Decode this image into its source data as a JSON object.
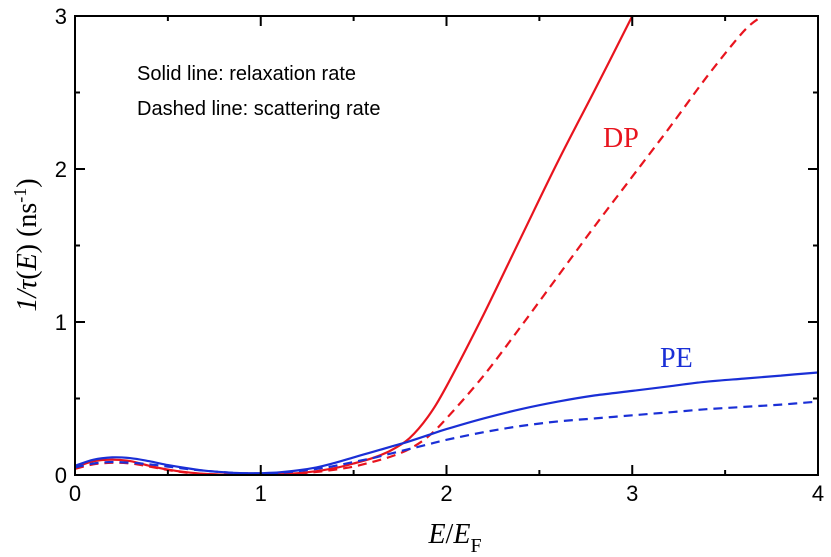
{
  "chart_data": {
    "type": "line",
    "xlabel": "E/E_F",
    "xlabel_parts": {
      "main": "E",
      "sep": "/",
      "sub_base": "E",
      "sub": "F"
    },
    "ylabel": "1/τ(E) (ns⁻¹)",
    "ylabel_parts": {
      "pre": "1/",
      "tau": "τ",
      "open": "(",
      "var": "E",
      "close": ")",
      "units": " (ns",
      "sup": "-1",
      "end": ")"
    },
    "xlim": [
      0,
      4
    ],
    "ylim": [
      0,
      3
    ],
    "x_ticks": [
      0,
      1,
      2,
      3,
      4
    ],
    "y_ticks": [
      0,
      1,
      2,
      3
    ],
    "x_tick_labels": [
      "0",
      "1",
      "2",
      "3",
      "4"
    ],
    "y_tick_labels": [
      "0",
      "1",
      "2",
      "3"
    ],
    "annotations": [
      "Solid line: relaxation rate",
      "Dashed line: scattering rate"
    ],
    "series_labels": [
      {
        "text": "DP",
        "color": "#e8141e"
      },
      {
        "text": "PE",
        "color": "#1a2fd6"
      }
    ],
    "series": [
      {
        "name": "DP relaxation rate",
        "mechanism": "DP",
        "style": "solid",
        "color": "#e8141e",
        "x": [
          0,
          0.1,
          0.2,
          0.3,
          0.4,
          0.5,
          0.6,
          0.7,
          0.8,
          0.9,
          1.0,
          1.1,
          1.2,
          1.3,
          1.4,
          1.5,
          1.6,
          1.7,
          1.8,
          1.9,
          2.0,
          2.2,
          2.4,
          2.6,
          2.8,
          3.0
        ],
        "y": [
          0.05,
          0.09,
          0.1,
          0.09,
          0.06,
          0.035,
          0.018,
          0.007,
          0.002,
          0.001,
          0.001,
          0.004,
          0.012,
          0.025,
          0.045,
          0.075,
          0.11,
          0.16,
          0.24,
          0.38,
          0.58,
          1.05,
          1.55,
          2.05,
          2.52,
          3.0
        ]
      },
      {
        "name": "DP scattering rate",
        "mechanism": "DP",
        "style": "dashed",
        "color": "#e8141e",
        "x": [
          0,
          0.1,
          0.2,
          0.3,
          0.4,
          0.5,
          0.6,
          0.7,
          0.8,
          0.9,
          1.0,
          1.1,
          1.2,
          1.3,
          1.4,
          1.5,
          1.6,
          1.7,
          1.8,
          1.9,
          2.0,
          2.2,
          2.4,
          2.6,
          2.8,
          3.0,
          3.2,
          3.4,
          3.6,
          3.7
        ],
        "y": [
          0.04,
          0.07,
          0.08,
          0.075,
          0.055,
          0.033,
          0.015,
          0.006,
          0.002,
          0.001,
          0.001,
          0.003,
          0.009,
          0.02,
          0.035,
          0.055,
          0.085,
          0.12,
          0.17,
          0.25,
          0.37,
          0.65,
          0.97,
          1.3,
          1.63,
          1.95,
          2.27,
          2.6,
          2.9,
          3.0
        ]
      },
      {
        "name": "PE relaxation rate",
        "mechanism": "PE",
        "style": "solid",
        "color": "#1a2fd6",
        "x": [
          0,
          0.1,
          0.2,
          0.3,
          0.4,
          0.5,
          0.6,
          0.7,
          0.8,
          0.9,
          1.0,
          1.1,
          1.2,
          1.3,
          1.4,
          1.5,
          1.6,
          1.7,
          1.8,
          1.9,
          2.0,
          2.2,
          2.4,
          2.6,
          2.8,
          3.0,
          3.2,
          3.4,
          3.6,
          3.8,
          4.0
        ],
        "y": [
          0.06,
          0.1,
          0.115,
          0.11,
          0.09,
          0.065,
          0.045,
          0.028,
          0.018,
          0.012,
          0.012,
          0.017,
          0.03,
          0.05,
          0.08,
          0.115,
          0.15,
          0.185,
          0.22,
          0.26,
          0.3,
          0.37,
          0.43,
          0.48,
          0.52,
          0.55,
          0.58,
          0.61,
          0.63,
          0.65,
          0.67
        ]
      },
      {
        "name": "PE scattering rate",
        "mechanism": "PE",
        "style": "dashed",
        "color": "#1a2fd6",
        "x": [
          0,
          0.1,
          0.2,
          0.3,
          0.4,
          0.5,
          0.6,
          0.7,
          0.8,
          0.9,
          1.0,
          1.1,
          1.2,
          1.3,
          1.4,
          1.5,
          1.6,
          1.7,
          1.8,
          1.9,
          2.0,
          2.2,
          2.4,
          2.6,
          2.8,
          3.0,
          3.2,
          3.4,
          3.6,
          3.8,
          4.0
        ],
        "y": [
          0.05,
          0.075,
          0.085,
          0.08,
          0.07,
          0.055,
          0.04,
          0.028,
          0.018,
          0.012,
          0.01,
          0.014,
          0.025,
          0.04,
          0.06,
          0.085,
          0.11,
          0.14,
          0.17,
          0.2,
          0.23,
          0.28,
          0.32,
          0.35,
          0.37,
          0.39,
          0.41,
          0.43,
          0.445,
          0.46,
          0.48
        ]
      }
    ]
  }
}
